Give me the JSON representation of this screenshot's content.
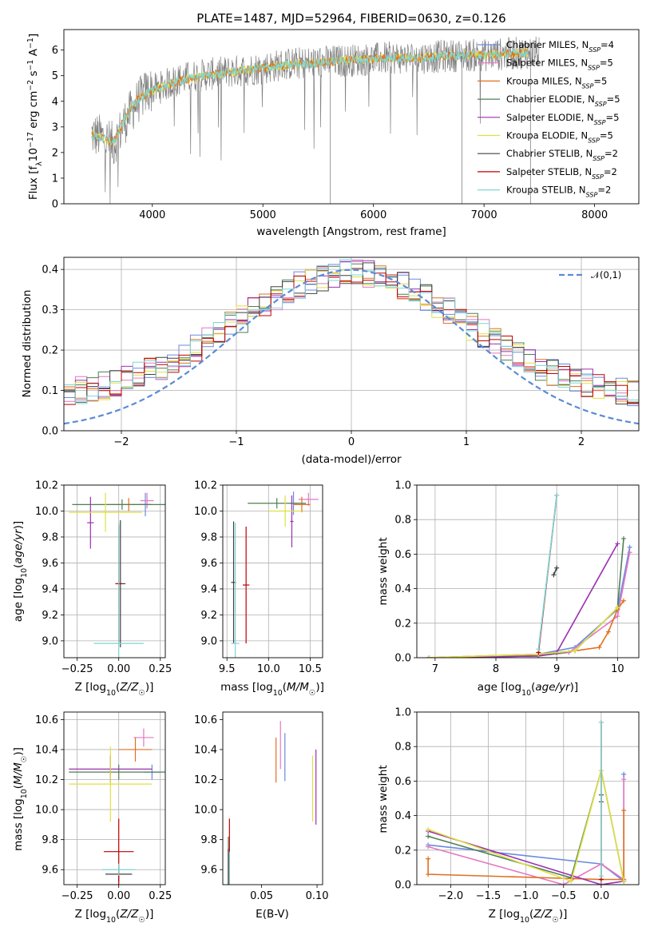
{
  "figure": {
    "title": "PLATE=1487, MJD=52964, FIBERID=0630, z=0.126"
  },
  "legend_styles": [
    {
      "label": "Chabrier MILES, N$_{SSP}$=4",
      "color": "#6b8ae0"
    },
    {
      "label": "Salpeter MILES, N$_{SSP}$=5",
      "color": "#e377c2"
    },
    {
      "label": "Kroupa MILES, N$_{SSP}$=5",
      "color": "#e07020"
    },
    {
      "label": "Chabrier ELODIE, N$_{SSP}$=5",
      "color": "#4f7f55"
    },
    {
      "label": "Salpeter ELODIE, N$_{SSP}$=5",
      "color": "#9b30b0"
    },
    {
      "label": "Kroupa ELODIE, N$_{SSP}$=5",
      "color": "#dfe040"
    },
    {
      "label": "Chabrier STELIB, N$_{SSP}$=2",
      "color": "#404040"
    },
    {
      "label": "Salpeter STELIB, N$_{SSP}$=2",
      "color": "#c00000"
    },
    {
      "label": "Kroupa STELIB, N$_{SSP}$=2",
      "color": "#7fd6d6"
    }
  ],
  "chart_data": [
    {
      "id": "spectrum",
      "type": "line",
      "title": "PLATE=1487, MJD=52964, FIBERID=0630, z=0.126",
      "xlabel": "wavelength [Angstrom, rest frame]",
      "ylabel": "Flux [f_λ 10^-17 erg cm^-2 s^-1 A^-1]",
      "xlim": [
        3200,
        8400
      ],
      "ylim": [
        0,
        6.8
      ],
      "xticks": [
        4000,
        5000,
        6000,
        7000,
        8000
      ],
      "yticks": [
        0,
        1,
        2,
        3,
        4,
        5,
        6
      ],
      "legend": [
        "Chabrier MILES, N_SSP=4",
        "Salpeter MILES, N_SSP=5",
        "Kroupa MILES, N_SSP=5",
        "Chabrier ELODIE, N_SSP=5",
        "Salpeter ELODIE, N_SSP=5",
        "Kroupa ELODIE, N_SSP=5",
        "Chabrier STELIB, N_SSP=2",
        "Salpeter STELIB, N_SSP=2",
        "Kroupa STELIB, N_SSP=2"
      ],
      "legend_position": "upper right",
      "data_envelope": {
        "x": [
          3450,
          3550,
          3650,
          3750,
          3850,
          3950,
          4050,
          4200,
          4400,
          4600,
          4800,
          5000,
          5200,
          5400,
          5600,
          5800,
          6000,
          6200,
          6400,
          6600,
          6800,
          7000,
          7200,
          7400,
          7500
        ],
        "y": [
          2.7,
          2.6,
          2.3,
          3.2,
          3.9,
          4.4,
          4.5,
          4.8,
          5.0,
          5.1,
          5.2,
          5.3,
          5.45,
          5.5,
          5.55,
          5.6,
          5.65,
          5.7,
          5.7,
          5.75,
          5.8,
          5.8,
          5.85,
          5.9,
          5.9
        ]
      },
      "model_envelope": {
        "x": [
          3450,
          3550,
          3650,
          3750,
          3850,
          3950,
          4050,
          4200,
          4400,
          4600,
          4800,
          5000,
          5200,
          5400,
          5600,
          5800,
          6000,
          6200,
          6400,
          6600,
          6800,
          7000,
          7200,
          7400
        ],
        "y": [
          2.7,
          2.55,
          2.4,
          3.3,
          4.0,
          4.3,
          4.5,
          4.75,
          4.95,
          5.05,
          5.2,
          5.3,
          5.4,
          5.45,
          5.55,
          5.6,
          5.65,
          5.7,
          5.7,
          5.75,
          5.8,
          5.8,
          5.85,
          5.9
        ]
      },
      "grid": false
    },
    {
      "id": "residuals",
      "type": "line",
      "xlabel": "(data-model)/error",
      "ylabel": "Normed distribution",
      "xlim": [
        -2.5,
        2.5
      ],
      "ylim": [
        0,
        0.43
      ],
      "xticks": [
        -2,
        -1,
        0,
        1,
        2
      ],
      "yticks": [
        0.0,
        0.1,
        0.2,
        0.3,
        0.4
      ],
      "legend": [
        "𝒩(0,1)"
      ],
      "legend_position": "upper right",
      "gaussian": {
        "mu": 0,
        "sigma": 1
      },
      "histogram_bin_width": 0.1,
      "grid": true
    },
    {
      "id": "age_vs_Z",
      "type": "scatter",
      "xlabel": "Z [log10(Z/Z_sun)]",
      "ylabel": "age [log10(age/yr)]",
      "xlim": [
        -0.33,
        0.28
      ],
      "ylim": [
        8.87,
        10.2
      ],
      "xticks": [
        -0.25,
        0.0,
        0.25
      ],
      "yticks": [
        9.0,
        9.2,
        9.4,
        9.6,
        9.8,
        10.0,
        10.2
      ],
      "points": [
        {
          "series": "Chabrier MILES",
          "x": 0.16,
          "y": 10.05,
          "xerr": 0.04,
          "yerr": 0.09
        },
        {
          "series": "Salpeter MILES",
          "x": 0.17,
          "y": 10.08,
          "xerr": 0.04,
          "yerr": 0.06
        },
        {
          "series": "Kroupa MILES",
          "x": 0.06,
          "y": 10.05,
          "xerr": 0.13,
          "yerr": 0.05
        },
        {
          "series": "Chabrier ELODIE",
          "x": 0.02,
          "y": 10.05,
          "xerr": 0.3,
          "yerr": 0.04
        },
        {
          "series": "Salpeter ELODIE",
          "x": -0.17,
          "y": 9.91,
          "xerr": 0.02,
          "yerr": 0.2
        },
        {
          "series": "Kroupa ELODIE",
          "x": -0.08,
          "y": 9.99,
          "xerr": 0.22,
          "yerr": 0.15
        },
        {
          "series": "Chabrier STELIB",
          "x": 0.01,
          "y": 9.44,
          "xerr": 0.03,
          "yerr": 0.49
        },
        {
          "series": "Salpeter STELIB",
          "x": 0.0,
          "y": 9.44,
          "xerr": 0.02,
          "yerr": 0.45
        },
        {
          "series": "Kroupa STELIB",
          "x": 0.0,
          "y": 8.98,
          "xerr": 0.15,
          "yerr": 0.93
        }
      ],
      "grid": true
    },
    {
      "id": "age_vs_mass",
      "type": "scatter",
      "xlabel": "mass [log10(M/M_sun)]",
      "ylabel": "",
      "xlim": [
        9.45,
        10.65
      ],
      "ylim": [
        8.87,
        10.2
      ],
      "xticks": [
        9.5,
        10.0,
        10.5
      ],
      "yticks": [
        9.0,
        9.2,
        9.4,
        9.6,
        9.8,
        10.0,
        10.2
      ],
      "points": [
        {
          "series": "Chabrier MILES",
          "x": 10.3,
          "y": 10.06,
          "xerr": 0.05,
          "yerr": 0.09
        },
        {
          "series": "Salpeter MILES",
          "x": 10.48,
          "y": 10.09,
          "xerr": 0.12,
          "yerr": 0.05
        },
        {
          "series": "Kroupa MILES",
          "x": 10.4,
          "y": 10.05,
          "xerr": 0.1,
          "yerr": 0.06
        },
        {
          "series": "Chabrier ELODIE",
          "x": 10.1,
          "y": 10.06,
          "xerr": 0.35,
          "yerr": 0.04
        },
        {
          "series": "Salpeter ELODIE",
          "x": 10.28,
          "y": 9.92,
          "xerr": 0.02,
          "yerr": 0.2
        },
        {
          "series": "Kroupa ELODIE",
          "x": 10.2,
          "y": 10.0,
          "xerr": 0.2,
          "yerr": 0.12
        },
        {
          "series": "Chabrier STELIB",
          "x": 9.58,
          "y": 9.45,
          "xerr": 0.03,
          "yerr": 0.47
        },
        {
          "series": "Salpeter STELIB",
          "x": 9.73,
          "y": 9.43,
          "xerr": 0.04,
          "yerr": 0.45
        },
        {
          "series": "Kroupa STELIB",
          "x": 9.6,
          "y": 8.98,
          "xerr": 0.05,
          "yerr": 0.93
        }
      ],
      "grid": true
    },
    {
      "id": "mass_weight_vs_age",
      "type": "line",
      "xlabel": "age [log10(age/yr)]",
      "ylabel": "mass weight",
      "xlim": [
        6.7,
        10.35
      ],
      "ylim": [
        0,
        1.0
      ],
      "xticks": [
        7,
        8,
        9,
        10
      ],
      "yticks": [
        0.0,
        0.2,
        0.4,
        0.6,
        0.8,
        1.0
      ],
      "series": [
        {
          "name": "Chabrier MILES",
          "x": [
            6.9,
            8.7,
            9.3,
            10.0,
            10.2
          ],
          "y": [
            0.0,
            0.02,
            0.06,
            0.28,
            0.64
          ]
        },
        {
          "name": "Salpeter MILES",
          "x": [
            6.9,
            8.7,
            9.2,
            10.0,
            10.2
          ],
          "y": [
            0.0,
            0.01,
            0.03,
            0.24,
            0.61
          ]
        },
        {
          "name": "Kroupa MILES",
          "x": [
            6.9,
            8.7,
            9.3,
            9.7,
            9.85,
            10.0,
            10.1
          ],
          "y": [
            0.0,
            0.02,
            0.04,
            0.06,
            0.15,
            0.28,
            0.33
          ]
        },
        {
          "name": "Chabrier ELODIE",
          "x": [
            6.9,
            8.7,
            9.3,
            10.0,
            10.1
          ],
          "y": [
            0.0,
            0.01,
            0.04,
            0.29,
            0.69
          ]
        },
        {
          "name": "Salpeter ELODIE",
          "x": [
            6.9,
            8.7,
            9.0,
            10.0
          ],
          "y": [
            0.0,
            0.01,
            0.03,
            0.66
          ]
        },
        {
          "name": "Kroupa ELODIE",
          "x": [
            6.9,
            8.7,
            9.3,
            10.0
          ],
          "y": [
            0.0,
            0.02,
            0.04,
            0.29
          ]
        },
        {
          "name": "Chabrier STELIB",
          "x": [
            8.95,
            9.0
          ],
          "y": [
            0.48,
            0.52
          ]
        },
        {
          "name": "Salpeter STELIB",
          "x": [
            8.7,
            9.0
          ],
          "y": [
            0.03,
            0.94
          ]
        },
        {
          "name": "Kroupa STELIB",
          "x": [
            8.7,
            9.0
          ],
          "y": [
            0.05,
            0.94
          ]
        }
      ],
      "grid": true
    },
    {
      "id": "mass_vs_Z",
      "type": "scatter",
      "xlabel": "Z [log10(Z/Z_sun)]",
      "ylabel": "mass [log10(M/M_sun)]",
      "xlim": [
        -0.33,
        0.28
      ],
      "ylim": [
        9.5,
        10.65
      ],
      "xticks": [
        -0.25,
        0.0,
        0.25
      ],
      "yticks": [
        9.6,
        9.8,
        10.0,
        10.2,
        10.4,
        10.6
      ],
      "points": [
        {
          "series": "Chabrier MILES",
          "x": 0.2,
          "y": 10.25,
          "xerr": 0.05,
          "yerr": 0.05
        },
        {
          "series": "Salpeter MILES",
          "x": 0.15,
          "y": 10.48,
          "xerr": 0.06,
          "yerr": 0.06
        },
        {
          "series": "Kroupa MILES",
          "x": 0.1,
          "y": 10.4,
          "xerr": 0.1,
          "yerr": 0.08
        },
        {
          "series": "Chabrier ELODIE",
          "x": 0.0,
          "y": 10.25,
          "xerr": 0.3,
          "yerr": 0.05
        },
        {
          "series": "Salpeter ELODIE",
          "x": -0.05,
          "y": 10.27,
          "xerr": 0.25,
          "yerr": 0.09
        },
        {
          "series": "Kroupa ELODIE",
          "x": -0.05,
          "y": 10.17,
          "xerr": 0.25,
          "yerr": 0.25
        },
        {
          "series": "Chabrier STELIB",
          "x": 0.0,
          "y": 9.57,
          "xerr": 0.08,
          "yerr": 0.05
        },
        {
          "series": "Salpeter STELIB",
          "x": 0.0,
          "y": 9.72,
          "xerr": 0.09,
          "yerr": 0.22
        },
        {
          "series": "Kroupa STELIB",
          "x": 0.0,
          "y": 9.6,
          "xerr": 0.1,
          "yerr": 0.04
        }
      ],
      "grid": true
    },
    {
      "id": "mass_vs_EBV",
      "type": "scatter",
      "xlabel": "E(B-V)",
      "ylabel": "",
      "xlim": [
        0.015,
        0.105
      ],
      "ylim": [
        9.5,
        10.65
      ],
      "xticks": [
        0.05,
        0.1
      ],
      "yticks": [
        9.6,
        9.8,
        10.0,
        10.2,
        10.4,
        10.6
      ],
      "points": [
        {
          "series": "Chabrier MILES",
          "x": 0.071,
          "y": 10.35,
          "yerr": 0.16
        },
        {
          "series": "Salpeter MILES",
          "x": 0.067,
          "y": 10.43,
          "yerr": 0.16
        },
        {
          "series": "Kroupa MILES",
          "x": 0.063,
          "y": 10.33,
          "yerr": 0.15
        },
        {
          "series": "Chabrier ELODIE",
          "x": 0.02,
          "y": 9.6,
          "yerr": 0.22
        },
        {
          "series": "Salpeter ELODIE",
          "x": 0.099,
          "y": 10.15,
          "yerr": 0.25
        },
        {
          "series": "Kroupa ELODIE",
          "x": 0.096,
          "y": 10.14,
          "yerr": 0.22
        },
        {
          "series": "Chabrier STELIB",
          "x": 0.02,
          "y": 9.62,
          "yerr": 0.12
        },
        {
          "series": "Salpeter STELIB",
          "x": 0.021,
          "y": 9.72,
          "yerr": 0.22
        },
        {
          "series": "Kroupa STELIB",
          "x": 0.021,
          "y": 9.6,
          "yerr": 0.12
        }
      ],
      "grid": false
    },
    {
      "id": "mass_weight_vs_Z",
      "type": "line",
      "xlabel": "Z [log10(Z/Z_sun)]",
      "ylabel": "mass weight",
      "xlim": [
        -2.45,
        0.5
      ],
      "ylim": [
        0,
        1.0
      ],
      "xticks": [
        -2.0,
        -1.5,
        -1.0,
        -0.5,
        0.0
      ],
      "yticks": [
        0.0,
        0.2,
        0.4,
        0.6,
        0.8,
        1.0
      ],
      "series": [
        {
          "name": "Chabrier MILES",
          "x": [
            -2.3,
            0.0,
            0.3,
            0.3
          ],
          "y": [
            0.23,
            0.12,
            0.02,
            0.64
          ]
        },
        {
          "name": "Salpeter MILES",
          "x": [
            -2.3,
            -0.5,
            0.0,
            0.3,
            0.3
          ],
          "y": [
            0.22,
            0.0,
            0.12,
            0.03,
            0.61
          ]
        },
        {
          "name": "Kroupa MILES",
          "x": [
            -2.3,
            -2.3,
            0.0,
            0.3,
            0.3
          ],
          "y": [
            0.15,
            0.06,
            0.03,
            0.03,
            0.43
          ]
        },
        {
          "name": "Chabrier ELODIE",
          "x": [
            -2.3,
            -0.4,
            0.0,
            0.3
          ],
          "y": [
            0.28,
            0.04,
            0.66,
            0.02
          ]
        },
        {
          "name": "Salpeter ELODIE",
          "x": [
            -2.3,
            0.0,
            0.3
          ],
          "y": [
            0.31,
            0.0,
            0.02
          ]
        },
        {
          "name": "Kroupa ELODIE",
          "x": [
            -2.3,
            -0.4,
            0.0,
            0.3
          ],
          "y": [
            0.32,
            0.02,
            0.66,
            0.02
          ]
        },
        {
          "name": "Chabrier STELIB",
          "x": [
            0.0,
            0.0
          ],
          "y": [
            0.48,
            0.52
          ]
        },
        {
          "name": "Salpeter STELIB",
          "x": [
            0.0,
            0.0
          ],
          "y": [
            0.03,
            0.94
          ]
        },
        {
          "name": "Kroupa STELIB",
          "x": [
            0.0,
            0.0
          ],
          "y": [
            0.05,
            0.94
          ]
        }
      ],
      "grid": true
    }
  ]
}
